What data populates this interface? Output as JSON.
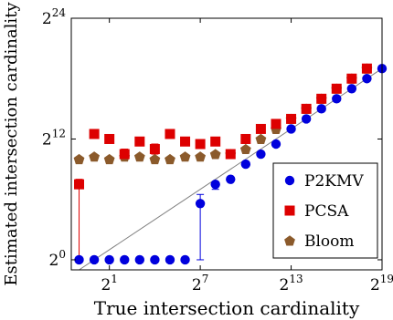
{
  "chart_data": {
    "type": "scatter",
    "xlabel": "True intersection cardinality",
    "ylabel": "Estimated intersection cardinality",
    "x_scale": "log2",
    "y_scale": "log2",
    "xlim": [
      0.35,
      524288
    ],
    "ylim": [
      0.5,
      16777216
    ],
    "x_ticks": [
      {
        "value": 2,
        "base": "2",
        "exp": "1"
      },
      {
        "value": 128,
        "base": "2",
        "exp": "7"
      },
      {
        "value": 8192,
        "base": "2",
        "exp": "13"
      },
      {
        "value": 524288,
        "base": "2",
        "exp": "19"
      }
    ],
    "y_ticks": [
      {
        "value": 1,
        "base": "2",
        "exp": "0"
      },
      {
        "value": 4096,
        "base": "2",
        "exp": "12"
      },
      {
        "value": 16777216,
        "base": "2",
        "exp": "24"
      }
    ],
    "x": [
      0.5,
      1,
      2,
      4,
      8,
      16,
      32,
      64,
      128,
      256,
      512,
      1024,
      2048,
      4096,
      8192,
      16384,
      32768,
      65536,
      131072,
      262144,
      524288
    ],
    "reference_line": {
      "x": [
        0.5,
        524288
      ],
      "y": [
        0.5,
        524288
      ],
      "color": "#808080"
    },
    "series": [
      {
        "name": "P2KMV",
        "marker": "circle",
        "color": "#0000dd",
        "values": [
          1,
          1,
          1,
          1,
          1,
          1,
          1,
          1,
          48,
          181,
          256,
          724,
          1448,
          2896,
          8192,
          16384,
          32768,
          65536,
          131072,
          262144,
          524288
        ],
        "err_low": [
          null,
          null,
          null,
          null,
          null,
          null,
          null,
          null,
          1,
          128,
          null,
          null,
          null,
          null,
          null,
          null,
          null,
          null,
          null,
          null,
          null
        ],
        "err_high": [
          null,
          null,
          null,
          null,
          null,
          null,
          null,
          null,
          90,
          210,
          null,
          null,
          null,
          null,
          null,
          null,
          null,
          null,
          null,
          null,
          null
        ]
      },
      {
        "name": "PCSA",
        "marker": "square",
        "color": "#dd0000",
        "values": [
          181,
          5793,
          4096,
          1448,
          3444,
          2048,
          5793,
          3444,
          2896,
          3444,
          1448,
          4096,
          8192,
          11585,
          16384,
          32768,
          65536,
          131072,
          262144,
          524288,
          null
        ],
        "err_low": [
          1,
          null,
          null,
          1024,
          null,
          1448,
          null,
          null,
          null,
          null,
          null,
          null,
          null,
          null,
          null,
          null,
          null,
          null,
          null,
          null,
          null
        ],
        "err_high": [
          256,
          null,
          null,
          2048,
          null,
          2896,
          null,
          null,
          null,
          null,
          null,
          null,
          null,
          null,
          null,
          null,
          null,
          null,
          null,
          null,
          null
        ]
      },
      {
        "name": "Bloom",
        "marker": "pentagon",
        "color": "#8b5a2b",
        "values": [
          1024,
          1218,
          1024,
          1218,
          1218,
          1024,
          1024,
          1218,
          1218,
          1448,
          1448,
          2048,
          4096,
          8192,
          16384,
          32768,
          65536,
          131072,
          262144,
          524288,
          null
        ]
      }
    ],
    "legend": {
      "position": "bottom-right",
      "entries": [
        "P2KMV",
        "PCSA",
        "Bloom"
      ]
    }
  }
}
